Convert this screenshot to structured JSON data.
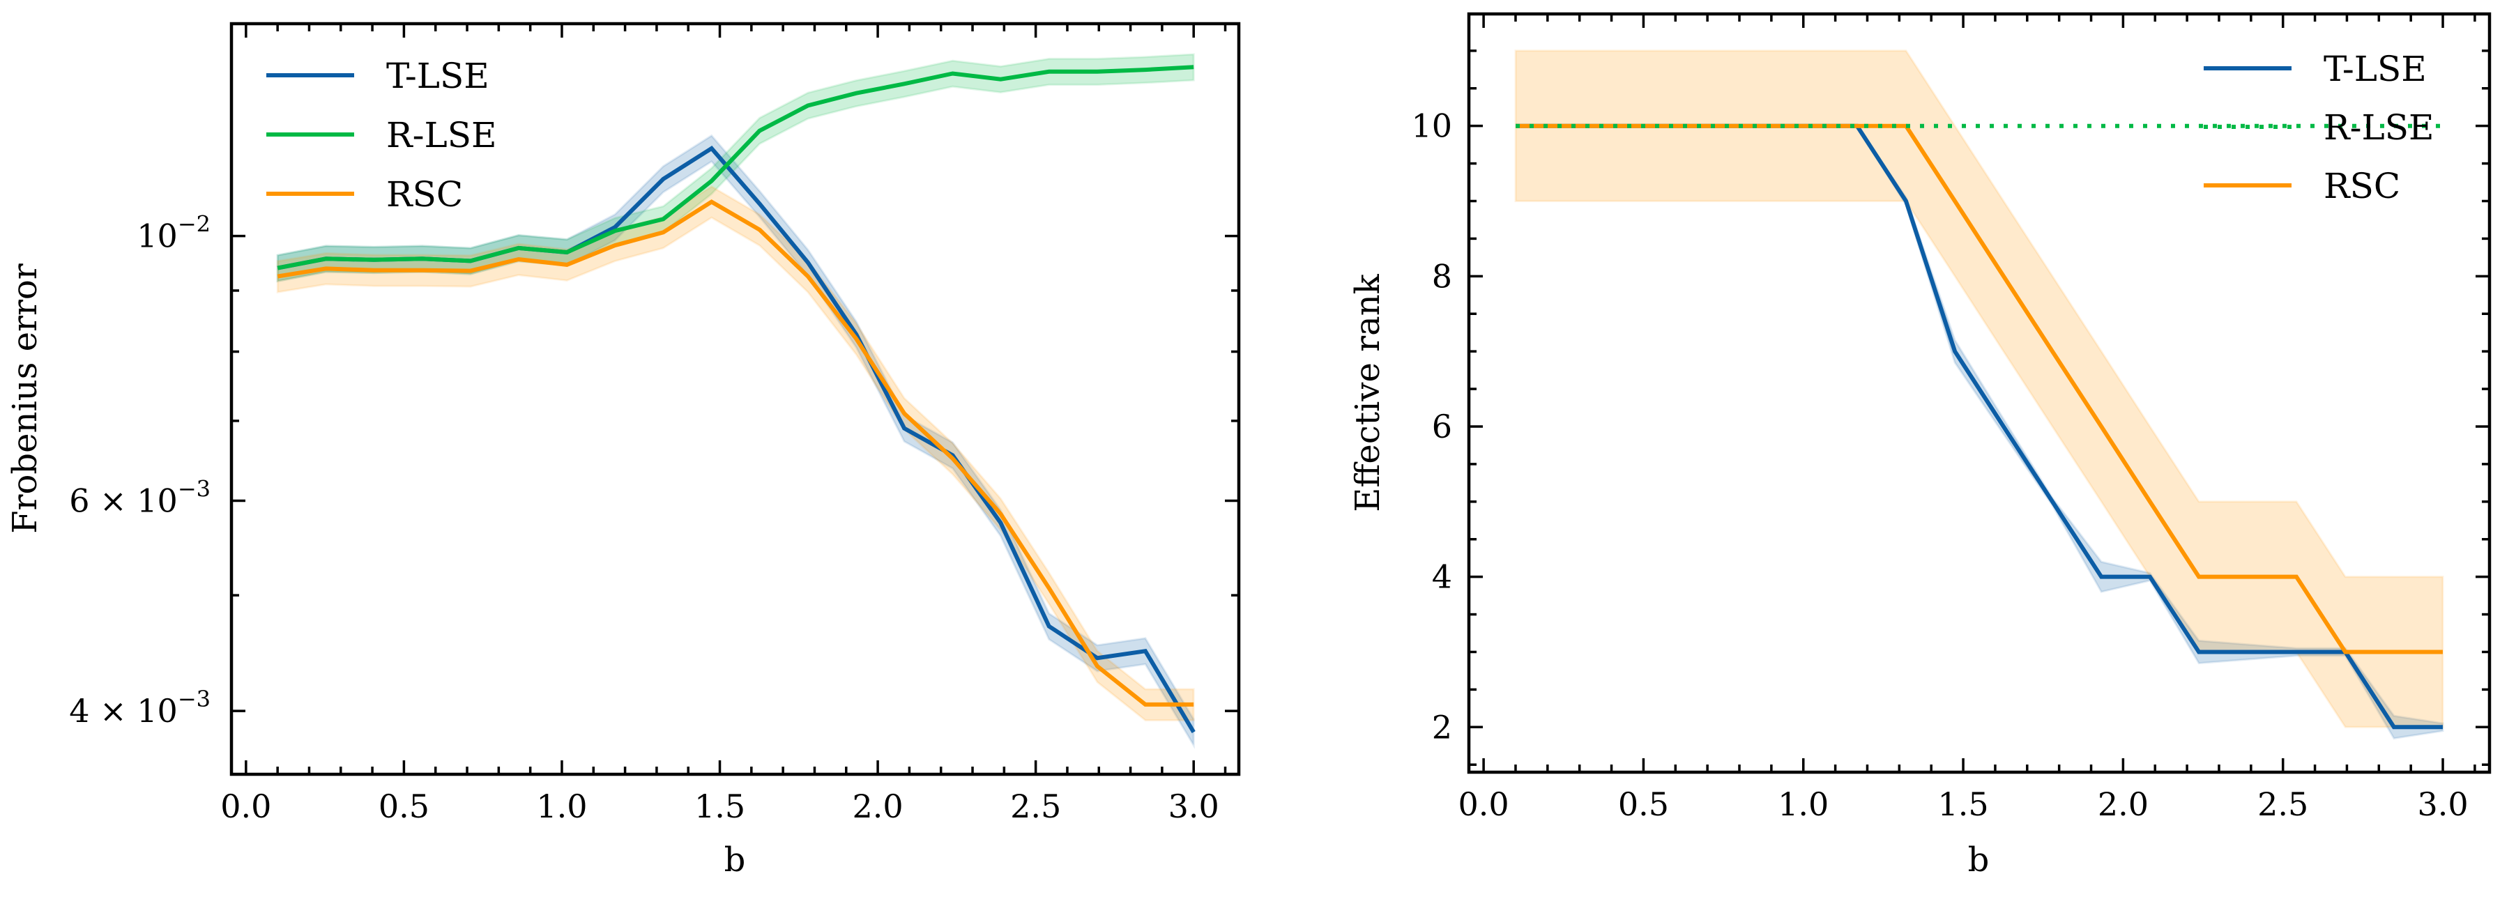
{
  "chart_data": [
    {
      "type": "line",
      "title": "",
      "xlabel": "b",
      "ylabel": "Frobenius error",
      "yscale": "log",
      "xlim": [
        -0.046,
        3.143
      ],
      "ylim": [
        0.00354,
        0.01506
      ],
      "grid": false,
      "legend_position": "top-left",
      "x_ticks": [
        0.0,
        0.5,
        1.0,
        1.5,
        2.0,
        2.5,
        3.0
      ],
      "x_tick_labels": [
        "0.0",
        "0.5",
        "1.0",
        "1.5",
        "2.0",
        "2.5",
        "3.0"
      ],
      "y_ticks": [
        {
          "value": 0.01,
          "base": "10",
          "exp": "−2",
          "prefix": ""
        },
        {
          "value": 0.006,
          "base": "10",
          "exp": "−3",
          "prefix": "6 × "
        },
        {
          "value": 0.004,
          "base": "10",
          "exp": "−3",
          "prefix": "4 × "
        }
      ],
      "y_minor_ticks": [
        0.009,
        0.008,
        0.007,
        0.005
      ],
      "x": [
        0.1,
        0.253,
        0.405,
        0.558,
        0.711,
        0.863,
        1.016,
        1.168,
        1.321,
        1.474,
        1.626,
        1.779,
        1.932,
        2.084,
        2.237,
        2.389,
        2.542,
        2.695,
        2.847,
        3.0
      ],
      "series": [
        {
          "name": "T-LSE",
          "color": "#0C5DA5",
          "values": [
            0.0094,
            0.00957,
            0.00955,
            0.00957,
            0.00953,
            0.00977,
            0.00969,
            0.01017,
            0.01116,
            0.01184,
            0.01064,
            0.0095,
            0.00827,
            0.0069,
            0.00655,
            0.00575,
            0.00471,
            0.00443,
            0.00449,
            0.00384
          ],
          "band_rel": 0.025
        },
        {
          "name": "R-LSE",
          "color": "#00B945",
          "values": [
            0.0094,
            0.00957,
            0.00955,
            0.00957,
            0.00953,
            0.00977,
            0.00969,
            0.0101,
            0.01033,
            0.01112,
            0.01225,
            0.01286,
            0.01317,
            0.01341,
            0.01368,
            0.01353,
            0.01373,
            0.01373,
            0.01378,
            0.01385
          ],
          "band_rel": 0.025
        },
        {
          "name": "RSC",
          "color": "#FF9500",
          "values": [
            0.00925,
            0.00939,
            0.00936,
            0.00936,
            0.00935,
            0.00956,
            0.00946,
            0.00982,
            0.01007,
            0.01068,
            0.01012,
            0.00925,
            0.0082,
            0.0071,
            0.00651,
            0.00585,
            0.00507,
            0.00436,
            0.00405,
            0.00405
          ],
          "band_rel": 0.03
        }
      ]
    },
    {
      "type": "line",
      "title": "",
      "xlabel": "b",
      "ylabel": "Effective rank",
      "yscale": "linear",
      "xlim": [
        -0.046,
        3.146
      ],
      "ylim": [
        1.4,
        11.49
      ],
      "grid": false,
      "legend_position": "top-right",
      "x_ticks": [
        0.0,
        0.5,
        1.0,
        1.5,
        2.0,
        2.5,
        3.0
      ],
      "x_tick_labels": [
        "0.0",
        "0.5",
        "1.0",
        "1.5",
        "2.0",
        "2.5",
        "3.0"
      ],
      "y_ticks": [
        2,
        4,
        6,
        8,
        10
      ],
      "y_tick_labels": [
        "2",
        "4",
        "6",
        "8",
        "10"
      ],
      "x": [
        0.1,
        0.253,
        0.405,
        0.558,
        0.711,
        0.863,
        1.016,
        1.168,
        1.321,
        1.474,
        1.626,
        1.779,
        1.932,
        2.084,
        2.237,
        2.389,
        2.542,
        2.695,
        2.847,
        3.0
      ],
      "series": [
        {
          "name": "T-LSE",
          "color": "#0C5DA5",
          "style": "solid",
          "values": [
            10,
            10,
            10,
            10,
            10,
            10,
            10,
            10,
            9,
            7,
            6,
            5,
            4,
            4,
            3,
            3,
            3,
            3,
            2,
            2
          ],
          "band": [
            0,
            0,
            0,
            0,
            0,
            0,
            0,
            0,
            0.05,
            0.15,
            0.1,
            0.05,
            0.2,
            0.05,
            0.15,
            0.1,
            0.05,
            0.05,
            0.15,
            0.05
          ]
        },
        {
          "name": "R-LSE",
          "color": "#00B945",
          "style": "dotted",
          "values": [
            10,
            10,
            10,
            10,
            10,
            10,
            10,
            10,
            10,
            10,
            10,
            10,
            10,
            10,
            10,
            10,
            10,
            10,
            10,
            10
          ],
          "band": [
            0,
            0,
            0,
            0,
            0,
            0,
            0,
            0,
            0,
            0,
            0,
            0,
            0,
            0,
            0,
            0,
            0,
            0,
            0,
            0
          ]
        },
        {
          "name": "RSC",
          "color": "#FF9500",
          "style": "solid",
          "values": [
            10,
            10,
            10,
            10,
            10,
            10,
            10,
            10,
            10,
            9,
            8,
            7,
            6,
            5,
            4,
            4,
            4,
            3,
            3,
            3
          ],
          "band": [
            1,
            1,
            1,
            1,
            1,
            1,
            1,
            1,
            1,
            1,
            1,
            1,
            1,
            1,
            1,
            1,
            1,
            1,
            1,
            1
          ]
        }
      ]
    }
  ]
}
